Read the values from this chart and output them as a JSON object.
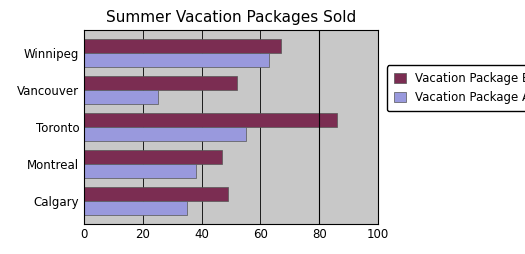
{
  "title": "Summer Vacation Packages Sold",
  "categories": [
    "Calgary",
    "Montreal",
    "Toronto",
    "Vancouver",
    "Winnipeg"
  ],
  "package_b": [
    49,
    47,
    86,
    52,
    67
  ],
  "package_a": [
    35,
    38,
    55,
    25,
    63
  ],
  "color_b": "#7B2D52",
  "color_a": "#9999DD",
  "xlim": [
    0,
    100
  ],
  "xticks": [
    0,
    20,
    40,
    60,
    80,
    100
  ],
  "legend_labels": [
    "Vacation Package B",
    "Vacation Package A"
  ],
  "fig_facecolor": "#FFFFFF",
  "plot_facecolor": "#C8C8C8",
  "title_fontsize": 11,
  "tick_fontsize": 8.5,
  "legend_fontsize": 8.5,
  "bar_height": 0.38,
  "vline_x": 80
}
